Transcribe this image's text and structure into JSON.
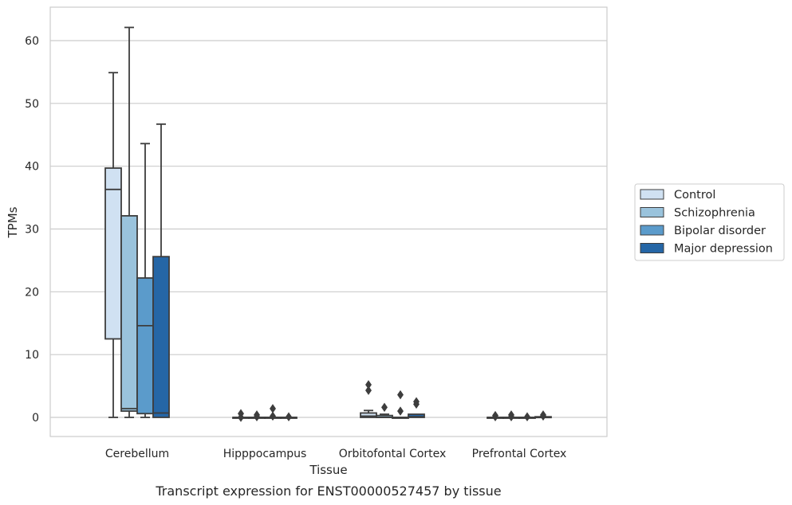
{
  "caption": "Transcript expression for ENST00000527457 by tissue",
  "chart_data": {
    "type": "box",
    "xlabel": "Tissue",
    "ylabel": "TPMs",
    "ylim": [
      -3,
      65
    ],
    "yticks": [
      0,
      10,
      20,
      30,
      40,
      50,
      60
    ],
    "grid": "horizontal",
    "legend_position": "right",
    "categories": [
      "Cerebellum",
      "Hipppocampus",
      "Orbitofontal Cortex",
      "Prefrontal Cortex"
    ],
    "series": [
      {
        "name": "Control",
        "color": "#d0e1f2",
        "boxes": [
          {
            "whislo": 0,
            "q1": 12.5,
            "med": 36.3,
            "q3": 39.7,
            "whishi": 54.9,
            "fliers": []
          },
          {
            "whislo": 0,
            "q1": 0,
            "med": 0,
            "q3": 0,
            "whishi": 0,
            "fliers": [
              0,
              0.6
            ]
          },
          {
            "whislo": 0,
            "q1": 0,
            "med": 0.2,
            "q3": 0.7,
            "whishi": 1.1,
            "fliers": [
              4.3,
              5.2
            ]
          },
          {
            "whislo": 0,
            "q1": 0,
            "med": 0,
            "q3": 0,
            "whishi": 0,
            "fliers": [
              0.1,
              0.3
            ]
          }
        ]
      },
      {
        "name": "Schizophrenia",
        "color": "#9ac3dc",
        "boxes": [
          {
            "whislo": 0,
            "q1": 1.0,
            "med": 1.4,
            "q3": 32.1,
            "whishi": 62.1,
            "fliers": []
          },
          {
            "whislo": 0,
            "q1": 0,
            "med": 0,
            "q3": 0,
            "whishi": 0,
            "fliers": [
              0.1,
              0.4
            ]
          },
          {
            "whislo": 0,
            "q1": 0,
            "med": 0,
            "q3": 0.3,
            "whishi": 0.5,
            "fliers": [
              1.6
            ]
          },
          {
            "whislo": 0,
            "q1": 0,
            "med": 0,
            "q3": 0,
            "whishi": 0,
            "fliers": [
              0.1,
              0.4
            ]
          }
        ]
      },
      {
        "name": "Bipolar disorder",
        "color": "#5b9bcb",
        "boxes": [
          {
            "whislo": 0,
            "q1": 0.6,
            "med": 14.6,
            "q3": 22.2,
            "whishi": 43.6,
            "fliers": []
          },
          {
            "whislo": 0,
            "q1": 0,
            "med": 0,
            "q3": 0,
            "whishi": 0,
            "fliers": [
              0.2,
              1.4
            ]
          },
          {
            "whislo": 0,
            "q1": 0,
            "med": 0,
            "q3": 0,
            "whishi": 0,
            "fliers": [
              1.0,
              3.6
            ]
          },
          {
            "whislo": 0,
            "q1": 0,
            "med": 0,
            "q3": 0,
            "whishi": 0,
            "fliers": [
              0.1
            ]
          }
        ]
      },
      {
        "name": "Major depression",
        "color": "#2566a6",
        "boxes": [
          {
            "whislo": 0,
            "q1": 0,
            "med": 0.7,
            "q3": 25.6,
            "whishi": 46.7,
            "fliers": []
          },
          {
            "whislo": 0,
            "q1": 0,
            "med": 0,
            "q3": 0,
            "whishi": 0,
            "fliers": [
              0.1
            ]
          },
          {
            "whislo": 0,
            "q1": 0,
            "med": 0.1,
            "q3": 0.5,
            "whishi": 0.5,
            "fliers": [
              2.1,
              2.5
            ]
          },
          {
            "whislo": 0,
            "q1": 0,
            "med": 0,
            "q3": 0.1,
            "whishi": 0.1,
            "fliers": [
              0.2,
              0.4
            ]
          }
        ]
      }
    ]
  }
}
